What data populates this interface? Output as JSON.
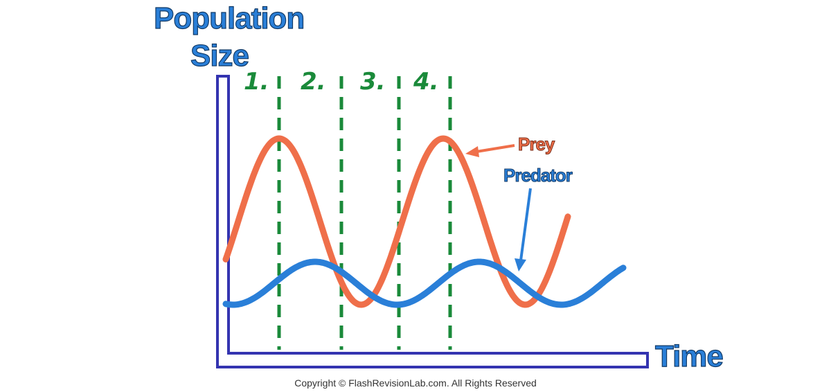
{
  "axis_labels": {
    "y": "Population Size",
    "x": "Time"
  },
  "phases": [
    "1.",
    "2.",
    "3.",
    "4."
  ],
  "curve_labels": {
    "prey": "Prey",
    "predator": "Predator"
  },
  "footer": "Copyright © FlashRevisionLab.com. All Rights Reserved"
}
